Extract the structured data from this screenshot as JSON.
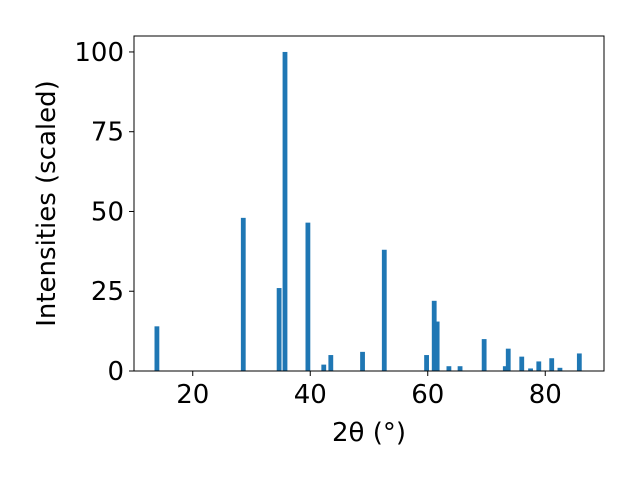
{
  "chart_data": {
    "type": "bar",
    "xlabel": "2θ (°)",
    "ylabel": "Intensities (scaled)",
    "xlim": [
      10,
      90
    ],
    "ylim": [
      0,
      105
    ],
    "xticks": [
      20,
      40,
      60,
      80
    ],
    "yticks": [
      0,
      25,
      50,
      75,
      100
    ],
    "bar_color": "#1f77b4",
    "grid": false,
    "x": [
      13.9,
      28.6,
      34.7,
      35.7,
      39.6,
      42.3,
      43.5,
      48.9,
      52.6,
      59.8,
      61.1,
      61.6,
      63.6,
      65.5,
      69.6,
      73.2,
      73.7,
      76.0,
      77.5,
      78.9,
      81.1,
      82.5,
      85.8
    ],
    "values": [
      14,
      48,
      26,
      100,
      46.5,
      2,
      5,
      6,
      38,
      5,
      22,
      15.5,
      1.5,
      1.5,
      10,
      1.5,
      7,
      4.5,
      0.8,
      3,
      4,
      1,
      5.5
    ]
  }
}
